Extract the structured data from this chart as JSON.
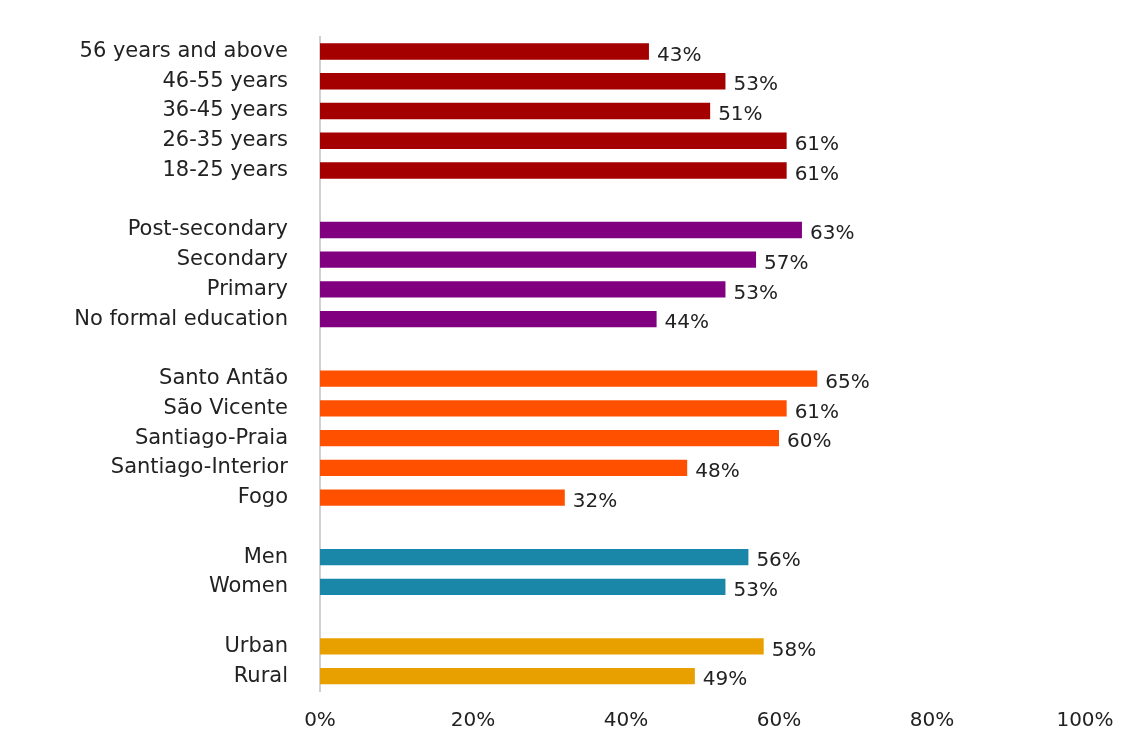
{
  "chart_data": {
    "type": "bar",
    "orientation": "horizontal",
    "categories": [
      "56 years and above",
      "46-55 years",
      "36-45 years",
      "26-35 years",
      "18-25 years",
      null,
      "Post-secondary",
      "Secondary",
      "Primary",
      "No formal education",
      null,
      "Santo Antão",
      "São Vicente",
      "Santiago-Praia",
      "Santiago-Interior",
      "Fogo",
      null,
      "Men",
      "Women",
      null,
      "Urban",
      "Rural"
    ],
    "values": [
      43,
      53,
      51,
      61,
      61,
      null,
      63,
      57,
      53,
      44,
      null,
      65,
      61,
      60,
      48,
      32,
      null,
      56,
      53,
      null,
      58,
      49
    ],
    "value_labels": [
      "43%",
      "53%",
      "51%",
      "61%",
      "61%",
      null,
      "63%",
      "57%",
      "53%",
      "44%",
      null,
      "65%",
      "61%",
      "60%",
      "48%",
      "32%",
      null,
      "56%",
      "53%",
      null,
      "58%",
      "49%"
    ],
    "colors": [
      "#a50000",
      "#a50000",
      "#a50000",
      "#a50000",
      "#a50000",
      null,
      "#800080",
      "#800080",
      "#800080",
      "#800080",
      null,
      "#ff5000",
      "#ff5000",
      "#ff5000",
      "#ff5000",
      "#ff5000",
      null,
      "#1a86a8",
      "#1a86a8",
      null,
      "#e8a000",
      "#e8a000"
    ],
    "xlim": [
      0,
      100
    ],
    "xticks": [
      {
        "value": 0,
        "label": "0%"
      },
      {
        "value": 20,
        "label": "20%"
      },
      {
        "value": 40,
        "label": "40%"
      },
      {
        "value": 60,
        "label": "60%"
      },
      {
        "value": 80,
        "label": "80%"
      },
      {
        "value": 100,
        "label": "100%"
      }
    ]
  }
}
